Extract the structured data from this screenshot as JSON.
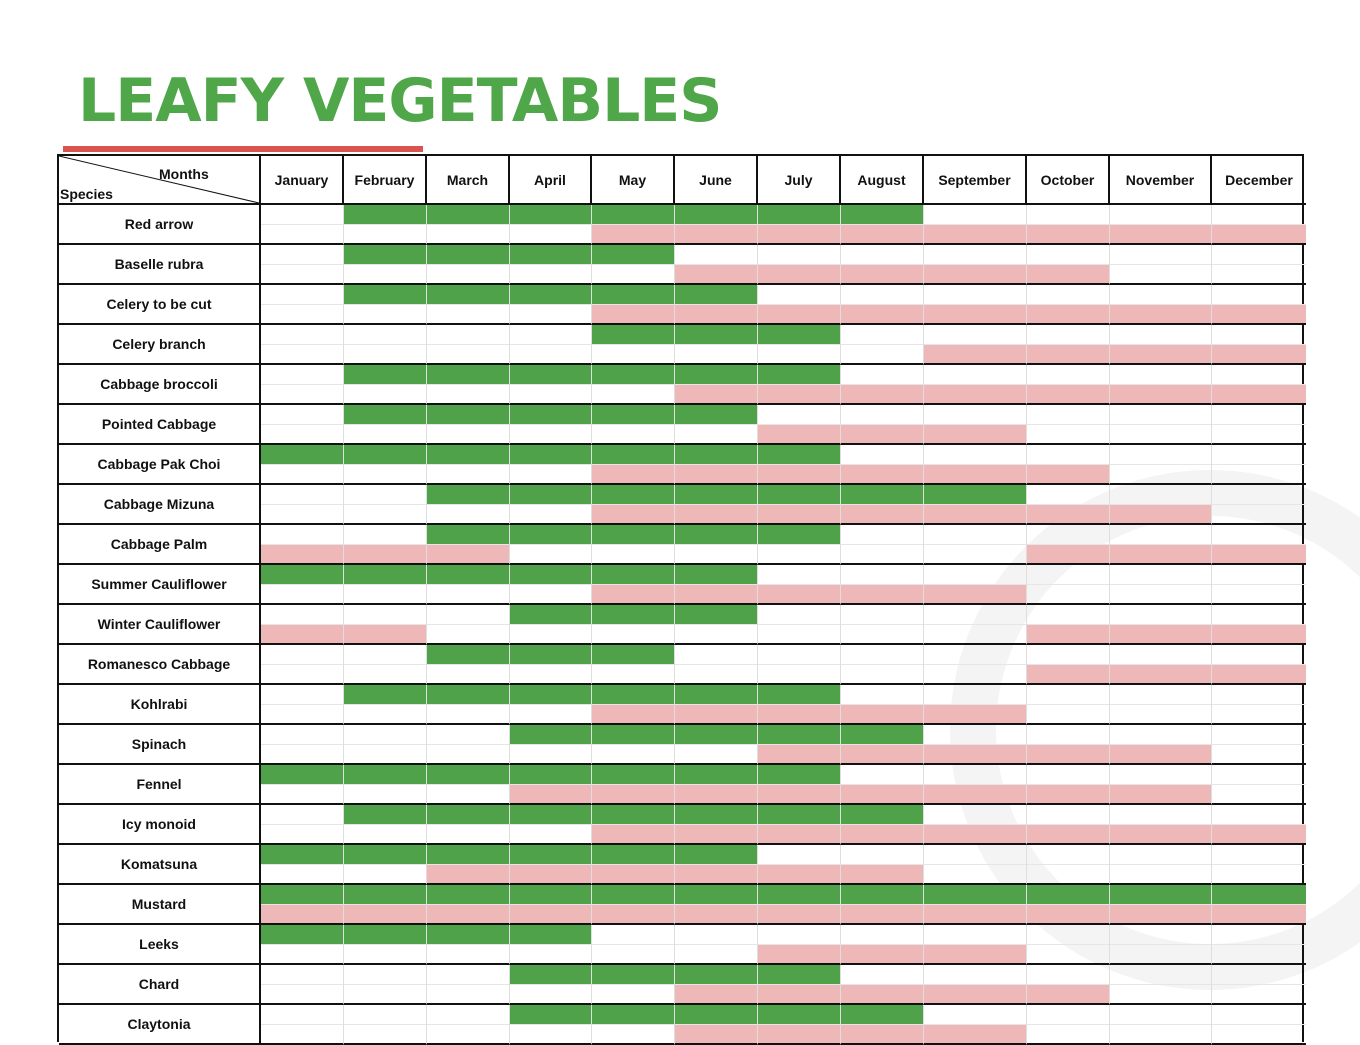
{
  "title": "LEAFY VEGETABLES",
  "header": {
    "months_label": "Months",
    "species_label": "Species",
    "months": [
      "January",
      "February",
      "March",
      "April",
      "May",
      "June",
      "July",
      "August",
      "September",
      "October",
      "November",
      "December"
    ]
  },
  "colors": {
    "title": "#4fa74a",
    "accent_rule": "#d9534f",
    "sowing_bar": "#4fa14a",
    "harvest_bar": "#efb8b8"
  },
  "rows": [
    {
      "species": "Red arrow",
      "sow": [
        2,
        8
      ],
      "harvest": [
        5,
        12
      ]
    },
    {
      "species": "Baselle rubra",
      "sow": [
        2,
        5
      ],
      "harvest": [
        6,
        10
      ]
    },
    {
      "species": "Celery to be cut",
      "sow": [
        2,
        6
      ],
      "harvest": [
        5,
        12
      ]
    },
    {
      "species": "Celery branch",
      "sow": [
        5,
        7
      ],
      "harvest": [
        9,
        12
      ]
    },
    {
      "species": "Cabbage broccoli",
      "sow": [
        2,
        7
      ],
      "harvest": [
        6,
        12
      ]
    },
    {
      "species": "Pointed Cabbage",
      "sow": [
        2,
        6
      ],
      "harvest": [
        7,
        9
      ]
    },
    {
      "species": "Cabbage Pak Choi",
      "sow": [
        1,
        7
      ],
      "harvest": [
        5,
        10
      ]
    },
    {
      "species": "Cabbage Mizuna",
      "sow": [
        3,
        9
      ],
      "harvest": [
        5,
        11
      ]
    },
    {
      "species": "Cabbage Palm",
      "sow": [
        3,
        7
      ],
      "harvest": [
        1,
        3
      ],
      "harvest2": [
        10,
        12
      ]
    },
    {
      "species": "Summer Cauliflower",
      "sow": [
        1,
        6
      ],
      "harvest": [
        5,
        9
      ]
    },
    {
      "species": "Winter Cauliflower",
      "sow": [
        4,
        6
      ],
      "harvest": [
        1,
        2
      ],
      "harvest2": [
        10,
        12
      ]
    },
    {
      "species": "Romanesco Cabbage",
      "sow": [
        3,
        5
      ],
      "harvest": [
        10,
        12
      ]
    },
    {
      "species": "Kohlrabi",
      "sow": [
        2,
        7
      ],
      "harvest": [
        5,
        9
      ]
    },
    {
      "species": "Spinach",
      "sow": [
        4,
        8
      ],
      "harvest": [
        7,
        11
      ]
    },
    {
      "species": "Fennel",
      "sow": [
        1,
        7
      ],
      "harvest": [
        4,
        11
      ]
    },
    {
      "species": "Icy monoid",
      "sow": [
        2,
        8
      ],
      "harvest": [
        5,
        12
      ]
    },
    {
      "species": "Komatsuna",
      "sow": [
        1,
        6
      ],
      "harvest": [
        3,
        8
      ]
    },
    {
      "species": "Mustard",
      "sow": [
        1,
        12
      ],
      "harvest": [
        1,
        12
      ]
    },
    {
      "species": "Leeks",
      "sow": [
        1,
        4
      ],
      "harvest": [
        7,
        9
      ]
    },
    {
      "species": "Chard",
      "sow": [
        4,
        7
      ],
      "harvest": [
        6,
        10
      ]
    },
    {
      "species": "Claytonia",
      "sow": [
        4,
        8
      ],
      "harvest": [
        6,
        9
      ]
    }
  ]
}
